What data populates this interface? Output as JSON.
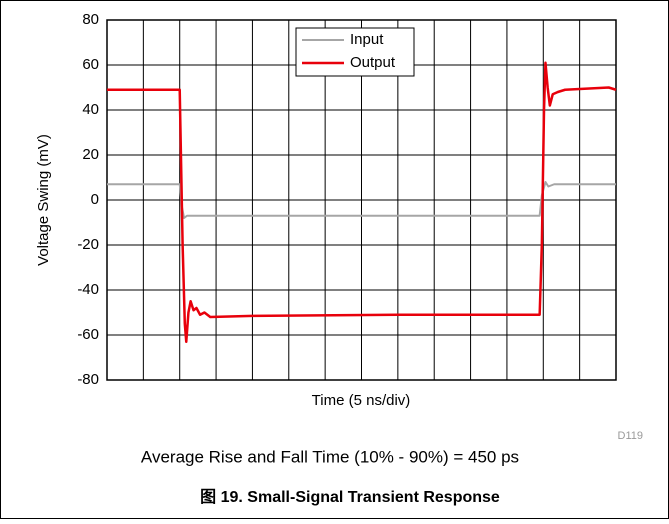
{
  "chart_data": {
    "type": "line",
    "xlabel": "Time (5 ns/div)",
    "ylabel": "Voltage Swing (mV)",
    "annotation": "D119",
    "subtitle": "Average Rise and Fall Time (10% - 90%) = 450 ps",
    "title": "图 19. Small-Signal Transient Response",
    "xlim": [
      0,
      70
    ],
    "ylim": [
      -80,
      80
    ],
    "yticks": [
      -80,
      -60,
      -40,
      -20,
      0,
      20,
      40,
      60,
      80
    ],
    "grid": true,
    "legend": "top",
    "series": [
      {
        "name": "Input",
        "color": "#a6a6a6",
        "x": [
          0,
          10,
          10.3,
          10.6,
          11,
          59.5,
          59.8,
          60.3,
          60.7,
          61.5,
          70
        ],
        "values": [
          7,
          7,
          -3,
          -8,
          -7,
          -7,
          2,
          8,
          6,
          7,
          7
        ]
      },
      {
        "name": "Output",
        "color": "#e8000b",
        "x": [
          0,
          10,
          10.4,
          10.7,
          10.9,
          11.2,
          11.5,
          11.9,
          12.3,
          12.8,
          13.4,
          14.2,
          20,
          40,
          59.5,
          59.8,
          60.1,
          60.3,
          60.6,
          60.9,
          61.3,
          62,
          63,
          66,
          69,
          70
        ],
        "values": [
          49,
          49,
          -20,
          -55,
          -63,
          -50,
          -45,
          -49,
          -48,
          -51,
          -50,
          -52,
          -51.5,
          -51,
          -51,
          -20,
          40,
          61,
          50,
          42,
          47,
          48,
          49,
          49.5,
          50,
          49
        ]
      }
    ]
  }
}
